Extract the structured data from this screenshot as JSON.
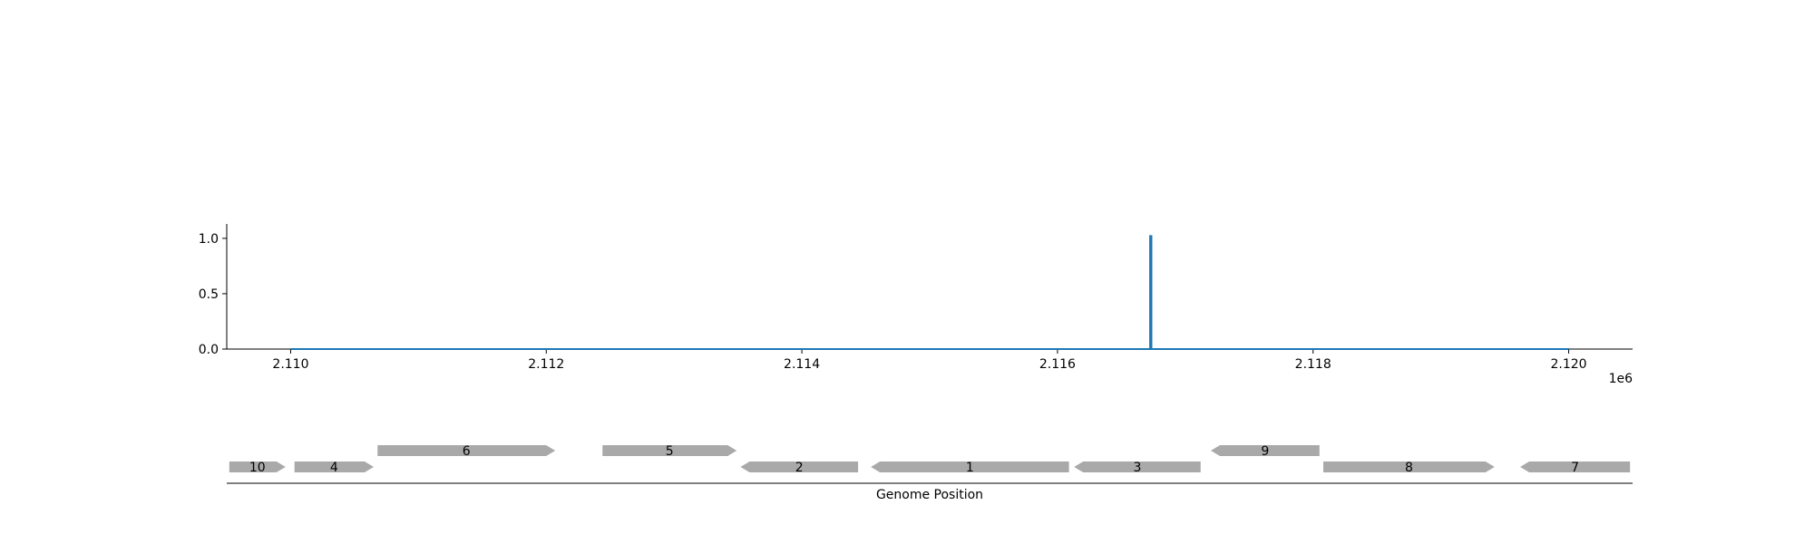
{
  "colors": {
    "signal": "#1f77b4",
    "gene": "#a9a9a9",
    "axis": "#000000",
    "background": "#ffffff"
  },
  "chart_data": [
    {
      "type": "line",
      "title": "",
      "xlabel": "",
      "ylabel": "",
      "xlim": [
        2109500,
        2120500
      ],
      "ylim": [
        0.0,
        1.13
      ],
      "x_ticks": [
        2110000,
        2112000,
        2114000,
        2116000,
        2118000,
        2120000
      ],
      "x_tick_labels": [
        "2.110",
        "2.112",
        "2.114",
        "2.116",
        "2.118",
        "2.120"
      ],
      "x_offset_label": "1e6",
      "y_ticks": [
        0.0,
        0.5,
        1.0
      ],
      "y_tick_labels": [
        "0.0",
        "0.5",
        "1.0"
      ],
      "grid": false,
      "series": [
        {
          "values": [
            {
              "x": 2110000,
              "y": 0
            },
            {
              "x": 2116725,
              "y": 0
            },
            {
              "x": 2116725,
              "y": 1.02
            },
            {
              "x": 2116735,
              "y": 1.02
            },
            {
              "x": 2116735,
              "y": 0
            },
            {
              "x": 2120000,
              "y": 0
            }
          ]
        }
      ]
    },
    {
      "type": "gene-map",
      "xlabel": "Genome Position",
      "xlim": [
        2109500,
        2120500
      ],
      "genes": [
        {
          "label": "10",
          "start": 2109520,
          "end": 2109960,
          "strand": "+",
          "row": 0
        },
        {
          "label": "4",
          "start": 2110030,
          "end": 2110650,
          "strand": "+",
          "row": 0
        },
        {
          "label": "6",
          "start": 2110680,
          "end": 2112070,
          "strand": "+",
          "row": 1
        },
        {
          "label": "5",
          "start": 2112440,
          "end": 2113490,
          "strand": "+",
          "row": 1
        },
        {
          "label": "2",
          "start": 2113520,
          "end": 2114440,
          "strand": "-",
          "row": 0
        },
        {
          "label": "1",
          "start": 2114540,
          "end": 2116090,
          "strand": "-",
          "row": 0
        },
        {
          "label": "3",
          "start": 2116130,
          "end": 2117120,
          "strand": "-",
          "row": 0
        },
        {
          "label": "9",
          "start": 2117200,
          "end": 2118050,
          "strand": "-",
          "row": 1
        },
        {
          "label": "8",
          "start": 2118080,
          "end": 2119420,
          "strand": "+",
          "row": 0
        },
        {
          "label": "7",
          "start": 2119620,
          "end": 2120480,
          "strand": "-",
          "row": 0
        }
      ]
    }
  ]
}
